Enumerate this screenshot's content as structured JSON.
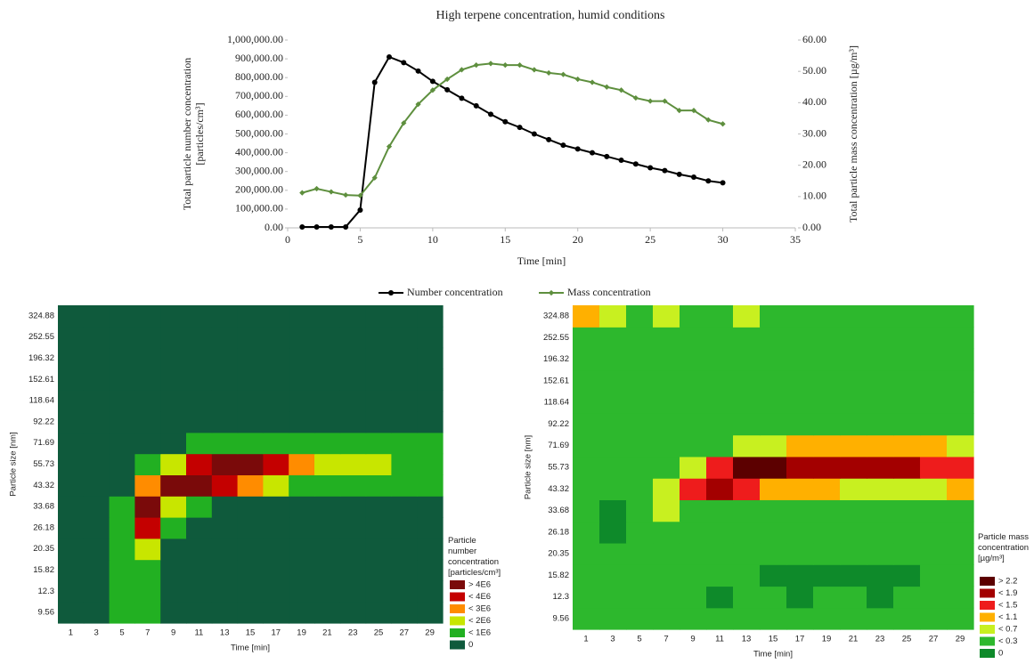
{
  "chart_data": [
    {
      "type": "line",
      "title": "High terpene concentration, humid conditions",
      "xlabel": "Time [min]",
      "ylabel": "Total particle number concentration [particles/cm³]",
      "y2label": "Total particle mass concentration [µg/m³]",
      "x": [
        1,
        2,
        3,
        4,
        5,
        6,
        7,
        8,
        9,
        10,
        11,
        12,
        13,
        14,
        15,
        16,
        17,
        18,
        19,
        20,
        21,
        22,
        23,
        24,
        25,
        26,
        27,
        28,
        29,
        30
      ],
      "series": [
        {
          "name": "Number concentration",
          "color": "#000000",
          "marker": "circle",
          "values": [
            5000,
            5000,
            5000,
            5000,
            95000,
            775000,
            910000,
            880000,
            835000,
            780000,
            735000,
            690000,
            650000,
            605000,
            565000,
            535000,
            500000,
            470000,
            440000,
            420000,
            400000,
            380000,
            360000,
            340000,
            320000,
            305000,
            285000,
            270000,
            250000,
            240000
          ]
        },
        {
          "name": "Mass concentration",
          "color": "#5e8f3e",
          "marker": "diamond",
          "axis": "y2",
          "values": [
            11.2,
            12.5,
            11.5,
            10.5,
            10.3,
            16,
            26,
            33.5,
            39.5,
            44,
            47.5,
            50.5,
            52,
            52.5,
            52,
            52,
            50.5,
            49.5,
            49,
            47.5,
            46.5,
            45,
            44,
            41.5,
            40.5,
            40.5,
            37.5,
            37.5,
            34.5,
            33.2
          ]
        }
      ],
      "xlim": [
        0,
        35
      ],
      "xticks": [
        0,
        5,
        10,
        15,
        20,
        25,
        30,
        35
      ],
      "ylim": [
        0,
        1000000
      ],
      "yticks": [
        {
          "value": 0,
          "label": "0.00"
        },
        {
          "value": 100000,
          "label": "100,000.00"
        },
        {
          "value": 200000,
          "label": "200,000.00"
        },
        {
          "value": 300000,
          "label": "300,000.00"
        },
        {
          "value": 400000,
          "label": "400,000.00"
        },
        {
          "value": 500000,
          "label": "500,000.00"
        },
        {
          "value": 600000,
          "label": "600,000.00"
        },
        {
          "value": 700000,
          "label": "700,000.00"
        },
        {
          "value": 800000,
          "label": "800,000.00"
        },
        {
          "value": 900000,
          "label": "900,000.00"
        },
        {
          "value": 1000000,
          "label": "1,000,000.00"
        }
      ],
      "y2lim": [
        0,
        60
      ],
      "y2ticks": [
        {
          "value": 0,
          "label": "0.00"
        },
        {
          "value": 10,
          "label": "10.00"
        },
        {
          "value": 20,
          "label": "20.00"
        },
        {
          "value": 30,
          "label": "30.00"
        },
        {
          "value": 40,
          "label": "40.00"
        },
        {
          "value": 50,
          "label": "50.00"
        },
        {
          "value": 60,
          "label": "60.00"
        }
      ],
      "grid": false,
      "legend": "bottom"
    },
    {
      "type": "heatmap",
      "xlabel": "Time [min]",
      "ylabel": "Particle size [nm]",
      "legend_title": "Particle number concentration [particles/cm³]",
      "x": [
        1,
        3,
        5,
        7,
        9,
        11,
        13,
        15,
        17,
        19,
        21,
        23,
        25,
        27,
        29
      ],
      "y": [
        9.56,
        12.3,
        15.82,
        20.35,
        26.18,
        33.68,
        43.32,
        55.73,
        71.69,
        92.22,
        118.64,
        152.61,
        196.32,
        252.55,
        324.88
      ],
      "levels": [
        {
          "value": 4000000,
          "label": "> 4E6",
          "color": "#7a0a0a"
        },
        {
          "value": 4000000,
          "label": "< 4E6",
          "color": "#c40000"
        },
        {
          "value": 3000000,
          "label": "< 3E6",
          "color": "#ff8c00"
        },
        {
          "value": 2000000,
          "label": "< 2E6",
          "color": "#c8e600"
        },
        {
          "value": 1000000,
          "label": "< 1E6",
          "color": "#22b022"
        },
        {
          "value": 0,
          "label": "0",
          "color": "#0f5a3c"
        }
      ],
      "values": [
        [
          0,
          0,
          500000,
          500000,
          0,
          0,
          0,
          0,
          0,
          0,
          0,
          0,
          0,
          0,
          0
        ],
        [
          0,
          0,
          500000,
          500000,
          0,
          0,
          0,
          0,
          0,
          0,
          0,
          0,
          0,
          0,
          0
        ],
        [
          0,
          0,
          500000,
          500000,
          0,
          0,
          0,
          0,
          0,
          0,
          0,
          0,
          0,
          0,
          0
        ],
        [
          0,
          0,
          500000,
          1500000,
          0,
          0,
          0,
          0,
          0,
          0,
          0,
          0,
          0,
          0,
          0
        ],
        [
          0,
          0,
          500000,
          3500000,
          500000,
          0,
          0,
          0,
          0,
          0,
          0,
          0,
          0,
          0,
          0
        ],
        [
          0,
          0,
          500000,
          4500000,
          1500000,
          500000,
          0,
          0,
          0,
          0,
          0,
          0,
          0,
          0,
          0
        ],
        [
          0,
          0,
          0,
          2500000,
          4500000,
          4500000,
          3500000,
          2500000,
          1500000,
          500000,
          500000,
          500000,
          500000,
          500000,
          500000
        ],
        [
          0,
          0,
          0,
          500000,
          1500000,
          3500000,
          4500000,
          4500000,
          3500000,
          2500000,
          1500000,
          1500000,
          1500000,
          500000,
          500000
        ],
        [
          0,
          0,
          0,
          0,
          0,
          500000,
          500000,
          500000,
          500000,
          500000,
          500000,
          500000,
          500000,
          500000,
          500000
        ],
        [
          0,
          0,
          0,
          0,
          0,
          0,
          0,
          0,
          0,
          0,
          0,
          0,
          0,
          0,
          0
        ],
        [
          0,
          0,
          0,
          0,
          0,
          0,
          0,
          0,
          0,
          0,
          0,
          0,
          0,
          0,
          0
        ],
        [
          0,
          0,
          0,
          0,
          0,
          0,
          0,
          0,
          0,
          0,
          0,
          0,
          0,
          0,
          0
        ],
        [
          0,
          0,
          0,
          0,
          0,
          0,
          0,
          0,
          0,
          0,
          0,
          0,
          0,
          0,
          0
        ],
        [
          0,
          0,
          0,
          0,
          0,
          0,
          0,
          0,
          0,
          0,
          0,
          0,
          0,
          0,
          0
        ],
        [
          0,
          0,
          0,
          0,
          0,
          0,
          0,
          0,
          0,
          0,
          0,
          0,
          0,
          0,
          0
        ]
      ]
    },
    {
      "type": "heatmap",
      "xlabel": "Time [min]",
      "ylabel": "Particle size [nm]",
      "legend_title": "Particle mass concentration [µg/m³]",
      "x": [
        1,
        3,
        5,
        7,
        9,
        11,
        13,
        15,
        17,
        19,
        21,
        23,
        25,
        27,
        29
      ],
      "y": [
        9.56,
        12.3,
        15.82,
        20.35,
        26.18,
        33.68,
        43.32,
        55.73,
        71.69,
        92.22,
        118.64,
        152.61,
        196.32,
        252.55,
        324.88
      ],
      "levels": [
        {
          "value": 2.2,
          "label": "> 2.2",
          "color": "#5c0000"
        },
        {
          "value": 1.9,
          "label": "< 1.9",
          "color": "#a30000"
        },
        {
          "value": 1.5,
          "label": "< 1.5",
          "color": "#ee1c1c"
        },
        {
          "value": 1.1,
          "label": "< 1.1",
          "color": "#ffb000"
        },
        {
          "value": 0.7,
          "label": "< 0.7",
          "color": "#c8f020"
        },
        {
          "value": 0.3,
          "label": "< 0.3",
          "color": "#2db82d"
        },
        {
          "value": 0,
          "label": "0",
          "color": "#0e8a2a"
        }
      ],
      "values": [
        [
          0.15,
          0.15,
          0.15,
          0.15,
          0.15,
          0.15,
          0.15,
          0.15,
          0.15,
          0.15,
          0.15,
          0.15,
          0.15,
          0.15,
          0.15
        ],
        [
          0.15,
          0.15,
          0.15,
          0.15,
          0.15,
          0,
          0.15,
          0.15,
          0,
          0.15,
          0.15,
          0,
          0.15,
          0.15,
          0.15
        ],
        [
          0.15,
          0.15,
          0.15,
          0.15,
          0.15,
          0.15,
          0.15,
          0,
          0,
          0,
          0,
          0,
          0,
          0.15,
          0.15
        ],
        [
          0.15,
          0.15,
          0.15,
          0.15,
          0.15,
          0.15,
          0.15,
          0.15,
          0.15,
          0.15,
          0.15,
          0.15,
          0.15,
          0.15,
          0.15
        ],
        [
          0.15,
          0,
          0.15,
          0.15,
          0.15,
          0.15,
          0.15,
          0.15,
          0.15,
          0.15,
          0.15,
          0.15,
          0.15,
          0.15,
          0.15
        ],
        [
          0.15,
          0,
          0.15,
          0.5,
          0.15,
          0.15,
          0.15,
          0.15,
          0.15,
          0.15,
          0.15,
          0.15,
          0.15,
          0.15,
          0.15
        ],
        [
          0.15,
          0.15,
          0.15,
          0.5,
          1.3,
          1.7,
          1.3,
          0.9,
          0.9,
          0.9,
          0.5,
          0.5,
          0.5,
          0.5,
          0.9
        ],
        [
          0.15,
          0.15,
          0.15,
          0.15,
          0.5,
          1.3,
          2.4,
          2.4,
          1.7,
          1.7,
          1.7,
          1.7,
          1.7,
          1.3,
          1.3
        ],
        [
          0.15,
          0.15,
          0.15,
          0.15,
          0.15,
          0.15,
          0.5,
          0.5,
          0.9,
          0.9,
          0.9,
          0.9,
          0.9,
          0.9,
          0.5
        ],
        [
          0.15,
          0.15,
          0.15,
          0.15,
          0.15,
          0.15,
          0.15,
          0.15,
          0.15,
          0.15,
          0.15,
          0.15,
          0.15,
          0.15,
          0.15
        ],
        [
          0.15,
          0.15,
          0.15,
          0.15,
          0.15,
          0.15,
          0.15,
          0.15,
          0.15,
          0.15,
          0.15,
          0.15,
          0.15,
          0.15,
          0.15
        ],
        [
          0.15,
          0.15,
          0.15,
          0.15,
          0.15,
          0.15,
          0.15,
          0.15,
          0.15,
          0.15,
          0.15,
          0.15,
          0.15,
          0.15,
          0.15
        ],
        [
          0.15,
          0.15,
          0.15,
          0.15,
          0.15,
          0.15,
          0.15,
          0.15,
          0.15,
          0.15,
          0.15,
          0.15,
          0.15,
          0.15,
          0.15
        ],
        [
          0.15,
          0.15,
          0.15,
          0.15,
          0.15,
          0.15,
          0.15,
          0.15,
          0.15,
          0.15,
          0.15,
          0.15,
          0.15,
          0.15,
          0.15
        ],
        [
          0.9,
          0.5,
          0.15,
          0.5,
          0.15,
          0.15,
          0.5,
          0.15,
          0.15,
          0.15,
          0.15,
          0.15,
          0.15,
          0.15,
          0.15
        ]
      ]
    }
  ]
}
